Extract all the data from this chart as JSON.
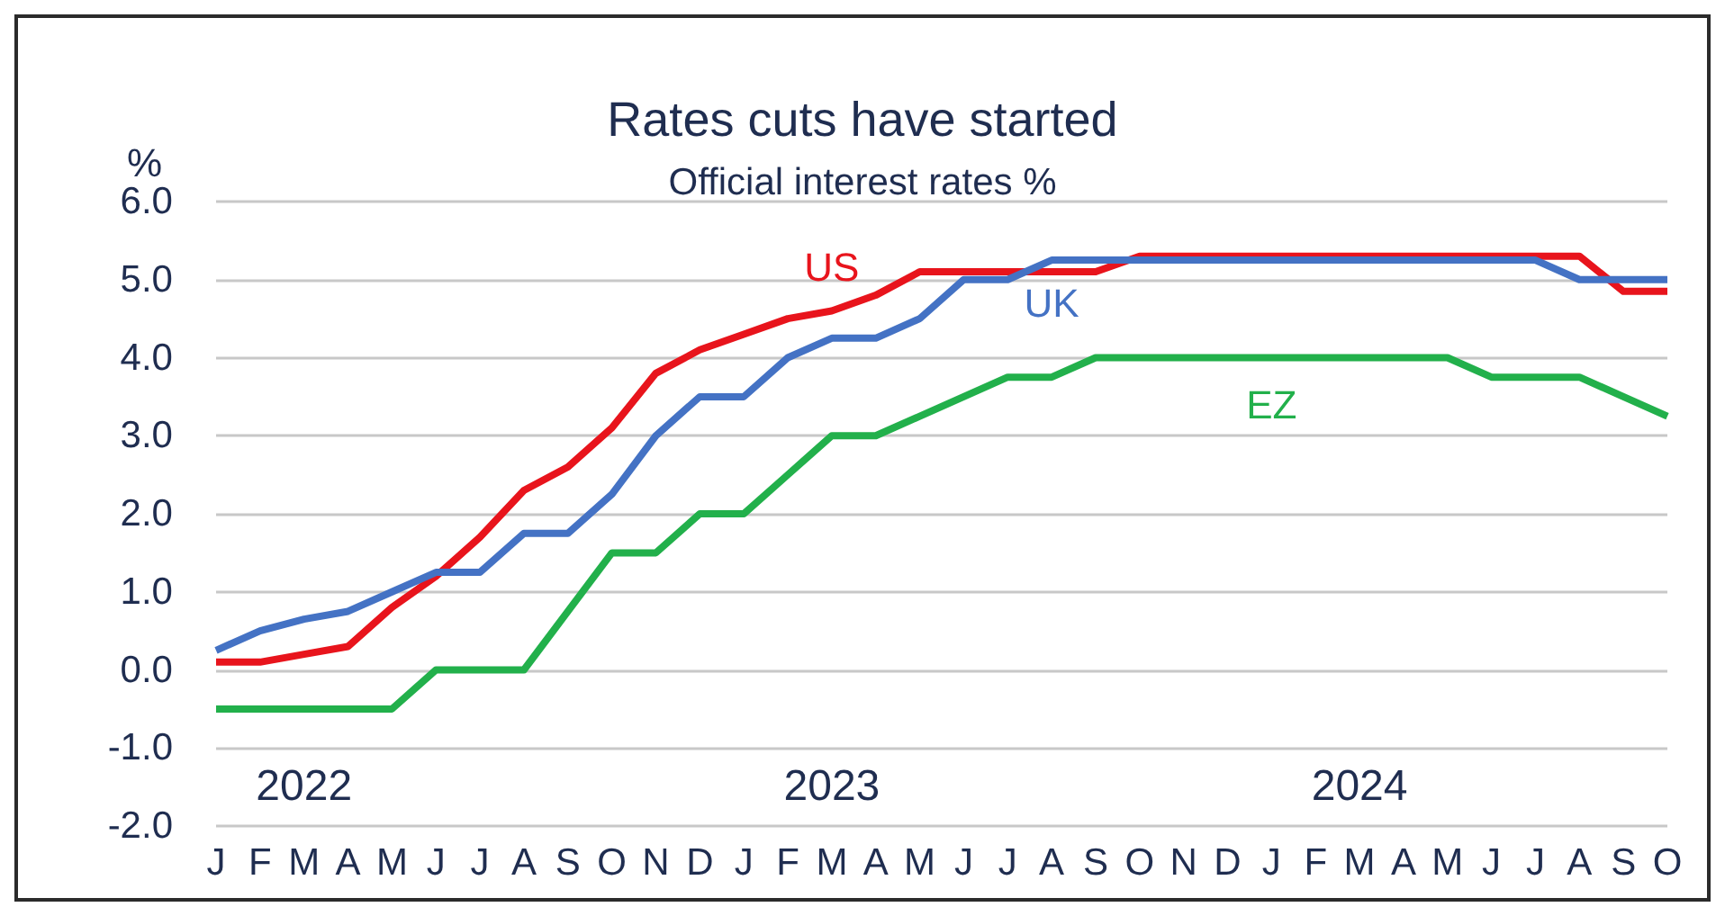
{
  "chart_data": {
    "type": "line",
    "title": "Rates cuts have started",
    "subtitle": "Official interest rates %",
    "ylabel": "%",
    "categories": [
      "J",
      "F",
      "M",
      "A",
      "M",
      "J",
      "J",
      "A",
      "S",
      "O",
      "N",
      "D",
      "J",
      "F",
      "M",
      "A",
      "M",
      "J",
      "J",
      "A",
      "S",
      "O",
      "N",
      "D",
      "J",
      "F",
      "M",
      "A",
      "M",
      "J",
      "J",
      "A",
      "S",
      "O"
    ],
    "series": [
      {
        "name": "US",
        "color": "#e8141c",
        "values": [
          0.1,
          0.1,
          0.2,
          0.3,
          0.8,
          1.2,
          1.7,
          2.3,
          2.6,
          3.1,
          3.8,
          4.1,
          4.3,
          4.5,
          4.6,
          4.8,
          5.1,
          5.1,
          5.1,
          5.1,
          5.1,
          5.3,
          5.3,
          5.3,
          5.3,
          5.3,
          5.3,
          5.3,
          5.3,
          5.3,
          5.3,
          5.3,
          4.85,
          4.85
        ]
      },
      {
        "name": "UK",
        "color": "#4472c4",
        "values": [
          0.25,
          0.5,
          0.65,
          0.75,
          1.0,
          1.25,
          1.25,
          1.75,
          1.75,
          2.25,
          3.0,
          3.5,
          3.5,
          4.0,
          4.25,
          4.25,
          4.5,
          5.0,
          5.0,
          5.25,
          5.25,
          5.25,
          5.25,
          5.25,
          5.25,
          5.25,
          5.25,
          5.25,
          5.25,
          5.25,
          5.25,
          5.0,
          5.0,
          5.0
        ]
      },
      {
        "name": "EZ",
        "color": "#22b04b",
        "values": [
          -0.5,
          -0.5,
          -0.5,
          -0.5,
          -0.5,
          0,
          0,
          0,
          0.75,
          1.5,
          1.5,
          2.0,
          2.0,
          2.5,
          3.0,
          3.0,
          3.25,
          3.5,
          3.75,
          3.75,
          4.0,
          4.0,
          4.0,
          4.0,
          4.0,
          4.0,
          4.0,
          4.0,
          4.0,
          3.75,
          3.75,
          3.75,
          3.5,
          3.25
        ]
      }
    ],
    "ylim": [
      -2,
      6
    ],
    "yticks": [
      {
        "value": -2,
        "label": "-2.0"
      },
      {
        "value": -1,
        "label": "-1.0"
      },
      {
        "value": 0,
        "label": "0.0"
      },
      {
        "value": 1,
        "label": "1.0"
      },
      {
        "value": 2,
        "label": "2.0"
      },
      {
        "value": 3,
        "label": "3.0"
      },
      {
        "value": 4,
        "label": "4.0"
      },
      {
        "value": 5,
        "label": "5.0"
      },
      {
        "value": 6,
        "label": "6.0"
      }
    ],
    "grid": "y",
    "legend": false,
    "marker": "none",
    "line_style": "solid",
    "annotations": [
      "2022",
      "2023",
      "2024"
    ]
  }
}
